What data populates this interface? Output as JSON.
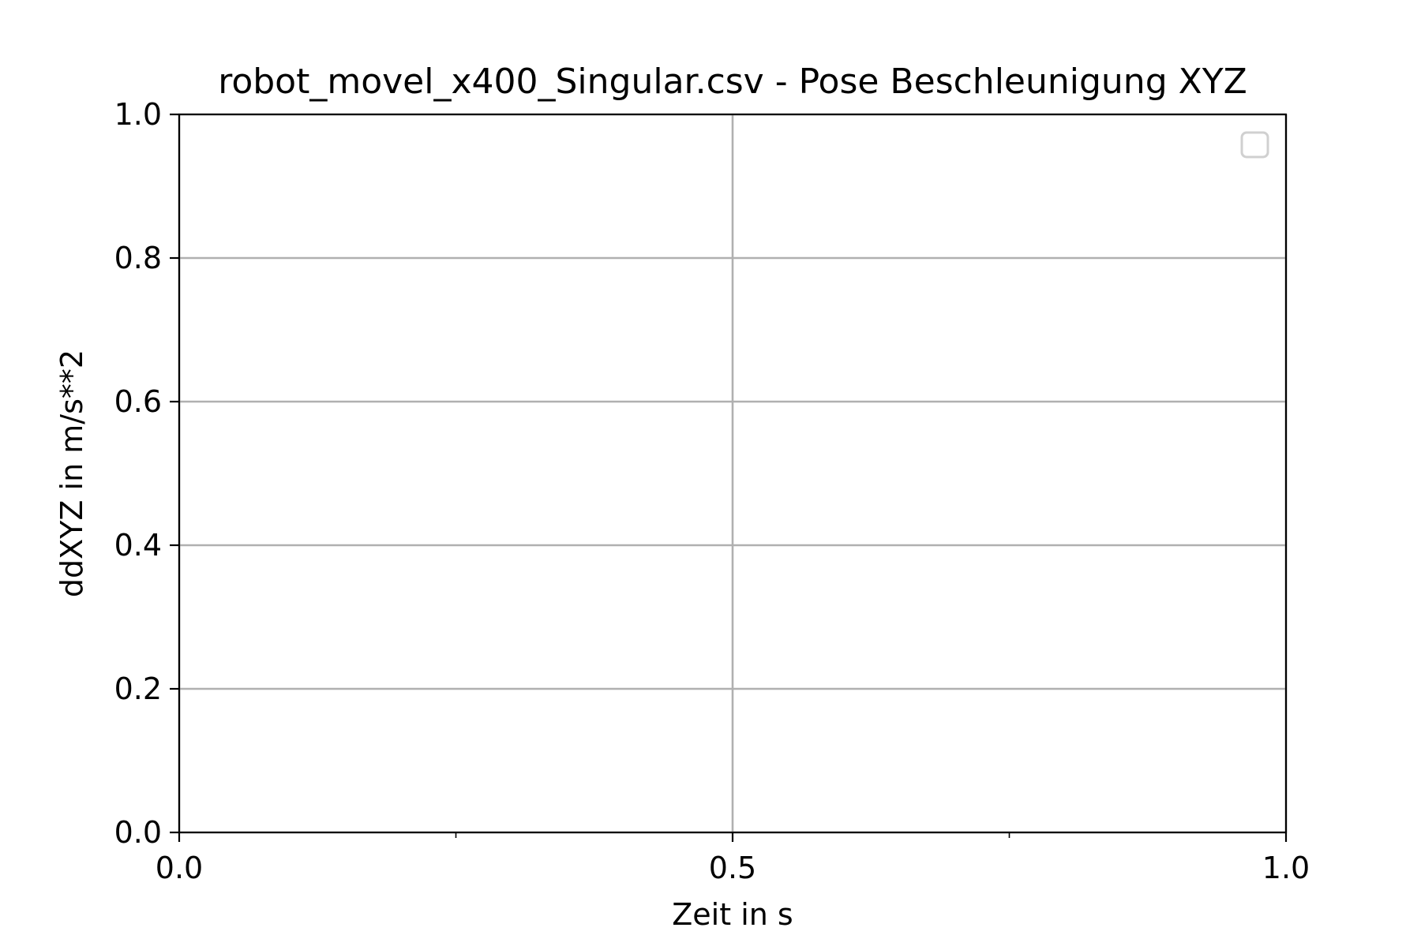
{
  "chart_data": {
    "type": "line",
    "title": "robot_movel_x400_Singular.csv - Pose Beschleunigung XYZ",
    "xlabel": "Zeit in s",
    "ylabel": "ddXYZ in m/s**2",
    "xlim": [
      0.0,
      1.0
    ],
    "ylim": [
      0.0,
      1.0
    ],
    "x_ticks": [
      {
        "value": 0.0,
        "label": "0.0"
      },
      {
        "value": 0.5,
        "label": "0.5"
      },
      {
        "value": 1.0,
        "label": "1.0"
      }
    ],
    "x_minor_ticks": [
      0.25,
      0.75
    ],
    "y_ticks": [
      {
        "value": 0.0,
        "label": "0.0"
      },
      {
        "value": 0.2,
        "label": "0.2"
      },
      {
        "value": 0.4,
        "label": "0.4"
      },
      {
        "value": 0.6,
        "label": "0.6"
      },
      {
        "value": 0.8,
        "label": "0.8"
      },
      {
        "value": 1.0,
        "label": "1.0"
      }
    ],
    "grid": true,
    "legend": {
      "position": "top-right",
      "entries": []
    },
    "series": []
  },
  "colors": {
    "grid": "#b0b0b0",
    "axes": "#000000",
    "legend_border": "#d0d0d0",
    "background": "#ffffff"
  }
}
